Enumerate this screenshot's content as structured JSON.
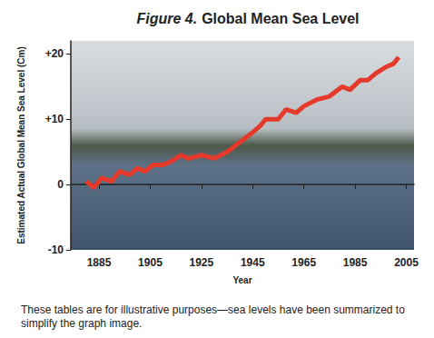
{
  "chart_data": {
    "type": "line",
    "title": "Figure 4. Global Mean Sea Level",
    "x_label": "Year",
    "y_label": "Estimated Actual Global Mean Sea Level (Cm)",
    "caption": "These tables are for illustrative purposes—sea levels have been summarized to simplify the graph image.",
    "x": [
      1880,
      1883,
      1886,
      1890,
      1893,
      1897,
      1900,
      1903,
      1906,
      1910,
      1913,
      1917,
      1920,
      1925,
      1930,
      1935,
      1940,
      1945,
      1948,
      1950,
      1955,
      1958,
      1962,
      1965,
      1970,
      1975,
      1980,
      1983,
      1987,
      1990,
      1993,
      1997,
      2000,
      2002
    ],
    "values": [
      0.5,
      -0.5,
      1,
      0.5,
      2,
      1.5,
      2.5,
      2,
      3,
      3,
      3.5,
      4.5,
      4,
      4.5,
      4,
      5,
      6.5,
      8,
      9,
      10,
      10,
      11.5,
      11,
      12,
      13,
      13.5,
      15,
      14.5,
      16,
      16,
      17,
      18,
      18.5,
      19.5
    ],
    "color": "#e5392b",
    "xlim": [
      1874,
      2008
    ],
    "xticks": [
      1885,
      1905,
      1925,
      1945,
      1965,
      1985,
      2005
    ],
    "ylim": [
      -10,
      22
    ],
    "yticks": [
      -10,
      0,
      {
        "value": 10,
        "label": "+10"
      },
      {
        "value": 20,
        "label": "+20"
      }
    ],
    "grid": false
  }
}
